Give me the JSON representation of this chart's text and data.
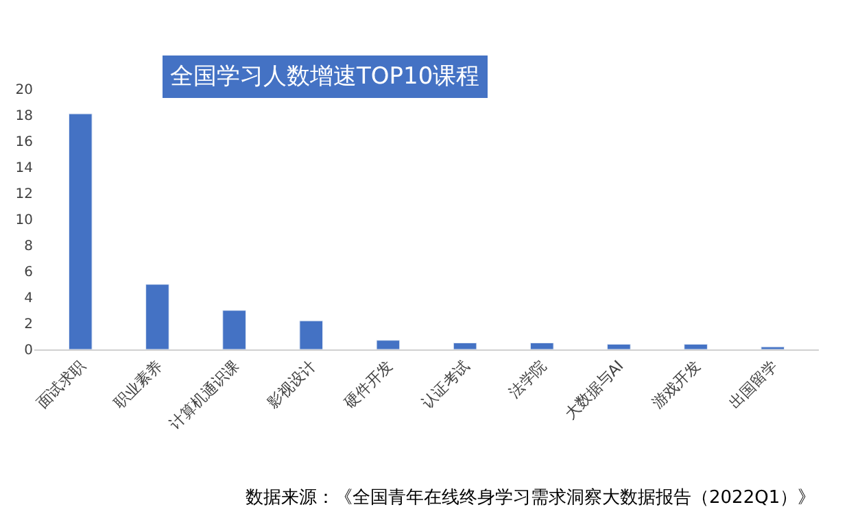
{
  "chart_data": {
    "type": "bar",
    "title": "全国学习人数增速TOP10课程",
    "categories": [
      "面试求职",
      "职业素养",
      "计算机通识课",
      "影视设计",
      "硬件开发",
      "认证考试",
      "法学院",
      "大数据与AI",
      "游戏开发",
      "出国留学"
    ],
    "values": [
      18.1,
      5.0,
      3.0,
      2.2,
      0.7,
      0.5,
      0.5,
      0.4,
      0.4,
      0.2
    ],
    "color": "#4472c4",
    "ylim": [
      0,
      20
    ],
    "yticks": [
      0,
      2,
      4,
      6,
      8,
      10,
      12,
      14,
      16,
      18,
      20
    ],
    "legend": false,
    "annotations": [
      "数据来源：《全国青年在线终身学习需求洞察大数据报告（2022Q1）》"
    ]
  }
}
